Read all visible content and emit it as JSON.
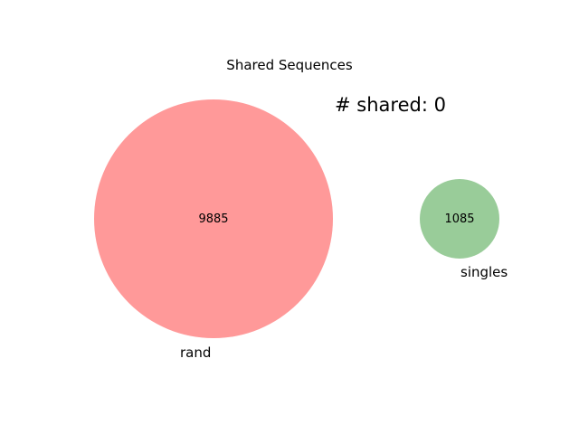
{
  "title": "Shared Sequences",
  "shared_text": "# shared: 0",
  "sets": [
    {
      "label": "rand",
      "count": "9885",
      "color": "#ff9999"
    },
    {
      "label": "singles",
      "count": "1085",
      "color": "#99cc99"
    }
  ]
}
